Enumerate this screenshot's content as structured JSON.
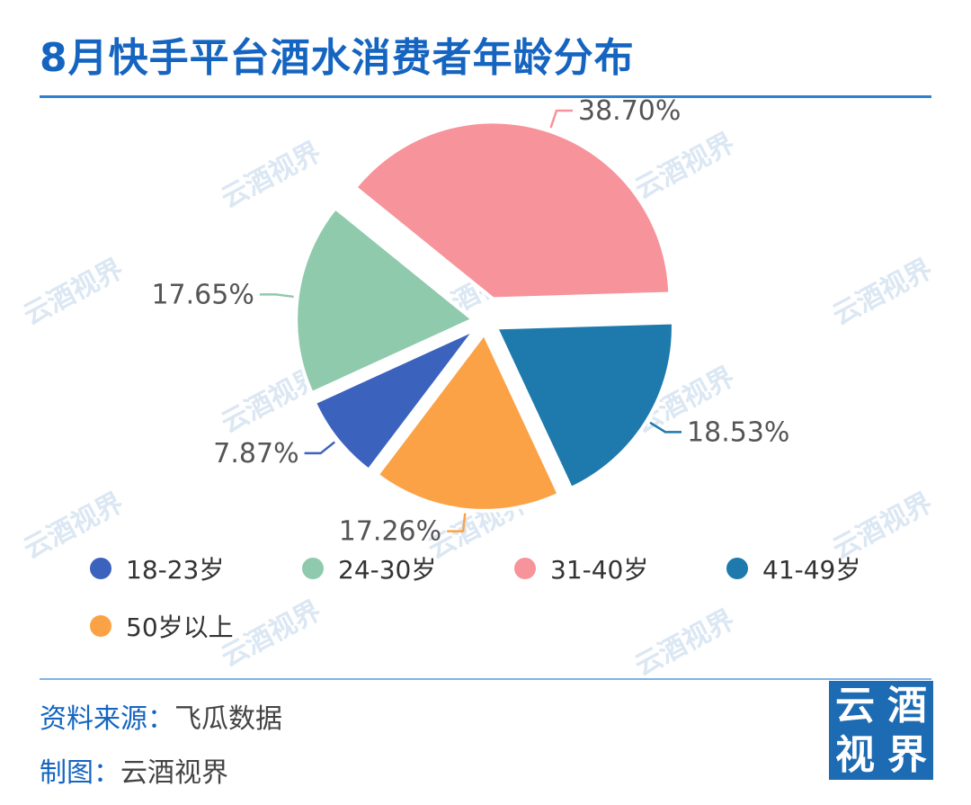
{
  "title": "8月快手平台酒水消费者年龄分布",
  "watermark": "云酒视界",
  "chart_data": {
    "type": "pie",
    "categories": [
      "18-23岁",
      "24-30岁",
      "31-40岁",
      "41-49岁",
      "50岁以上"
    ],
    "values": [
      7.87,
      17.65,
      38.7,
      18.53,
      17.26
    ],
    "labels": [
      "7.87%",
      "17.65%",
      "38.70%",
      "18.53%",
      "17.26%"
    ],
    "colors": [
      "#3b62bd",
      "#8fcaad",
      "#f7939a",
      "#1e7aac",
      "#fba246"
    ],
    "legend_position": "bottom"
  },
  "footer": {
    "source_label": "资料来源：",
    "source_value": "飞瓜数据",
    "maker_label": "制图：",
    "maker_value": "云酒视界"
  },
  "logo": {
    "chars": [
      "云",
      "酒",
      "视",
      "界"
    ],
    "color": "#1c6bb3"
  }
}
